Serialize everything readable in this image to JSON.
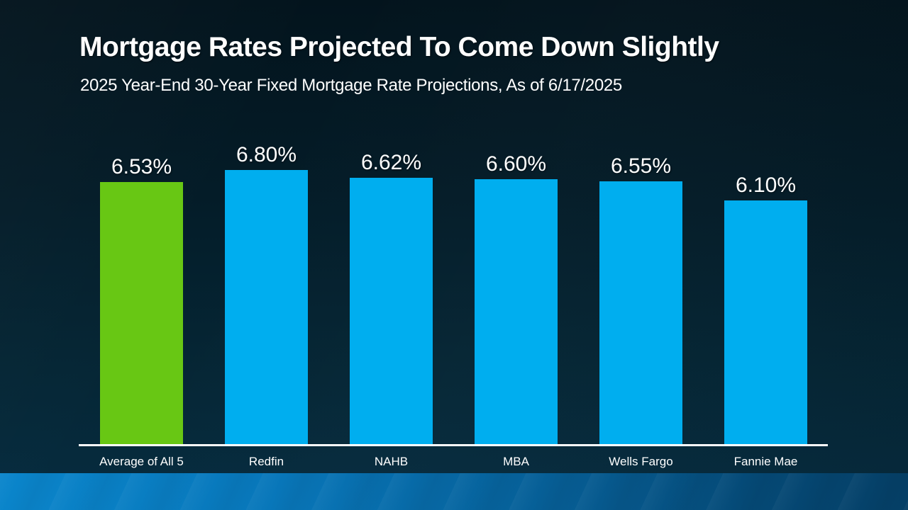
{
  "slide": {
    "title": "Mortgage Rates Projected To Come Down Slightly",
    "subtitle": "2025 Year-End 30-Year Fixed Mortgage Rate Projections, As of 6/17/2025"
  },
  "chart_data": {
    "type": "bar",
    "title": "Mortgage Rates Projected To Come Down Slightly",
    "subtitle": "2025 Year-End 30-Year Fixed Mortgage Rate Projections, As of 6/17/2025",
    "categories": [
      "Average of All 5",
      "Redfin",
      "NAHB",
      "MBA",
      "Wells Fargo",
      "Fannie Mae"
    ],
    "values": [
      6.53,
      6.8,
      6.62,
      6.6,
      6.55,
      6.1
    ],
    "data_labels": [
      "6.53%",
      "6.80%",
      "6.62%",
      "6.60%",
      "6.55%",
      "6.10%"
    ],
    "series_colors": [
      "#68c714",
      "#00aeef",
      "#00aeef",
      "#00aeef",
      "#00aeef",
      "#00aeef"
    ],
    "xlabel": "",
    "ylabel": "",
    "ylim": [
      0.5,
      7.0
    ],
    "grid": false,
    "legend": false
  },
  "colors": {
    "background_top": "#03141d",
    "background_bottom": "#062c40",
    "bar_highlight_green": "#68c714",
    "bar_blue": "#00aeef",
    "axis_line": "#ffffff",
    "text": "#ffffff",
    "footer_gradient_left": "#0a85cb",
    "footer_gradient_right": "#053f66"
  }
}
